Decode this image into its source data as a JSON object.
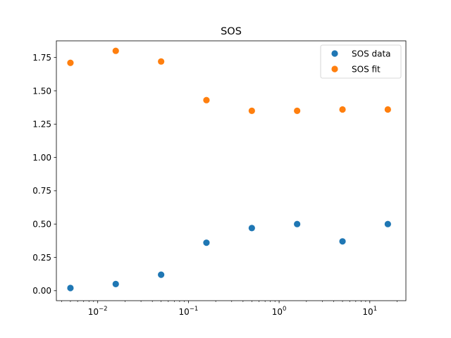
{
  "chart_data": {
    "type": "scatter",
    "title": "SOS",
    "xlabel": "",
    "ylabel": "",
    "xscale": "log",
    "xlim": [
      0.0035,
      25
    ],
    "ylim": [
      -0.075,
      1.875
    ],
    "x": [
      0.005,
      0.0158,
      0.05,
      0.158,
      0.5,
      1.58,
      5,
      15.8
    ],
    "x_ticks": [
      0.01,
      0.1,
      1,
      10
    ],
    "x_tick_labels": [
      {
        "base": "10",
        "exp": "−2"
      },
      {
        "base": "10",
        "exp": "−1"
      },
      {
        "base": "10",
        "exp": "0"
      },
      {
        "base": "10",
        "exp": "1"
      }
    ],
    "y_ticks": [
      0.0,
      0.25,
      0.5,
      0.75,
      1.0,
      1.25,
      1.5,
      1.75
    ],
    "y_tick_labels": [
      "0.00",
      "0.25",
      "0.50",
      "0.75",
      "1.00",
      "1.25",
      "1.50",
      "1.75"
    ],
    "series": [
      {
        "name": "SOS data",
        "color": "#1f77b4",
        "values": [
          0.02,
          0.05,
          0.12,
          0.36,
          0.47,
          0.5,
          0.37,
          0.5
        ]
      },
      {
        "name": "SOS fit",
        "color": "#ff7f0e",
        "values": [
          1.71,
          1.8,
          1.72,
          1.43,
          1.35,
          1.35,
          1.36,
          1.36
        ]
      }
    ],
    "grid": false,
    "legend_position": "top-right"
  }
}
